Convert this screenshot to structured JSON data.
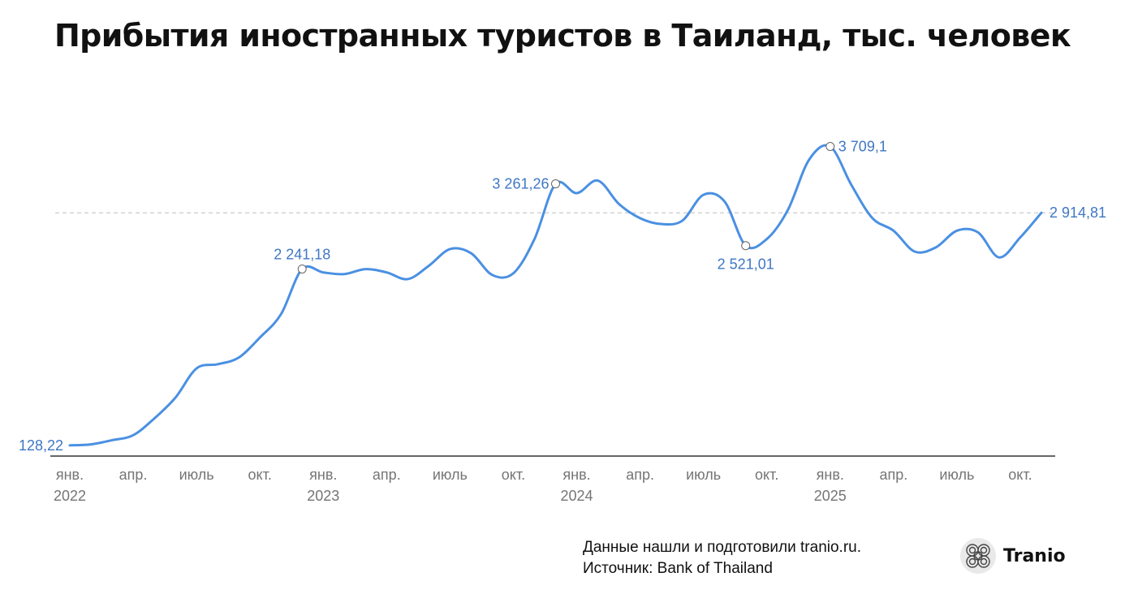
{
  "title": "Прибытия иностранных туристов в Таиланд, тыс. человек",
  "footer": {
    "line1": "Данные нашли и подготовили tranio.ru.",
    "line2": "Источник: Bank of Thailand"
  },
  "brand": {
    "name": "Tranio",
    "icon": "tranio-logo-icon"
  },
  "colors": {
    "line": "#4a90e2",
    "label": "#3f77c4",
    "axis": "#333333",
    "grid": "#bdbdbd",
    "tick": "#757575"
  },
  "chart_data": {
    "type": "line",
    "title": "Прибытия иностранных туристов в Таиланд, тыс. человек",
    "xlabel": "",
    "ylabel": "",
    "ylim": [
      0,
      4200
    ],
    "grid": false,
    "reference_line": 2914.81,
    "x": [
      "2022-01",
      "2022-02",
      "2022-03",
      "2022-04",
      "2022-05",
      "2022-06",
      "2022-07",
      "2022-08",
      "2022-09",
      "2022-10",
      "2022-11",
      "2022-12",
      "2023-01",
      "2023-02",
      "2023-03",
      "2023-04",
      "2023-05",
      "2023-06",
      "2023-07",
      "2023-08",
      "2023-09",
      "2023-10",
      "2023-11",
      "2023-12",
      "2024-01",
      "2024-02",
      "2024-03",
      "2024-04",
      "2024-05",
      "2024-06",
      "2024-07",
      "2024-08",
      "2024-09",
      "2024-10",
      "2024-11",
      "2024-12",
      "2025-01",
      "2025-02",
      "2025-03",
      "2025-04",
      "2025-05",
      "2025-06",
      "2025-07",
      "2025-08",
      "2025-09",
      "2025-10",
      "2025-11"
    ],
    "series": [
      {
        "name": "",
        "values": [
          128.22,
          140,
          190,
          250,
          450,
          700,
          1050,
          1100,
          1180,
          1420,
          1700,
          2241.18,
          2200,
          2180,
          2240,
          2200,
          2120,
          2280,
          2480,
          2430,
          2170,
          2190,
          2600,
          3261.26,
          3150,
          3300,
          3020,
          2850,
          2780,
          2820,
          3130,
          3050,
          2521.01,
          2600,
          2950,
          3550,
          3709.1,
          3250,
          2850,
          2700,
          2450,
          2500,
          2700,
          2680,
          2380,
          2620,
          2914.81
        ]
      }
    ],
    "labels": [
      {
        "index": 0,
        "text": "128,22",
        "pos": "left"
      },
      {
        "index": 11,
        "text": "2 241,18",
        "pos": "above"
      },
      {
        "index": 23,
        "text": "3 261,26",
        "pos": "left"
      },
      {
        "index": 32,
        "text": "2 521,01",
        "pos": "below"
      },
      {
        "index": 36,
        "text": "3 709,1",
        "pos": "right"
      },
      {
        "index": 46,
        "text": "2 914,81",
        "pos": "right"
      }
    ],
    "tick_labels": [
      {
        "index": 0,
        "month": "янв.",
        "year": "2022"
      },
      {
        "index": 3,
        "month": "апр.",
        "year": ""
      },
      {
        "index": 6,
        "month": "июль",
        "year": ""
      },
      {
        "index": 9,
        "month": "окт.",
        "year": ""
      },
      {
        "index": 12,
        "month": "янв.",
        "year": "2023"
      },
      {
        "index": 15,
        "month": "апр.",
        "year": ""
      },
      {
        "index": 18,
        "month": "июль",
        "year": ""
      },
      {
        "index": 21,
        "month": "окт.",
        "year": ""
      },
      {
        "index": 24,
        "month": "янв.",
        "year": "2024"
      },
      {
        "index": 27,
        "month": "апр.",
        "year": ""
      },
      {
        "index": 30,
        "month": "июль",
        "year": ""
      },
      {
        "index": 33,
        "month": "окт.",
        "year": ""
      },
      {
        "index": 36,
        "month": "янв.",
        "year": "2025"
      },
      {
        "index": 39,
        "month": "апр.",
        "year": ""
      },
      {
        "index": 42,
        "month": "июль",
        "year": ""
      },
      {
        "index": 45,
        "month": "окт.",
        "year": ""
      }
    ]
  }
}
